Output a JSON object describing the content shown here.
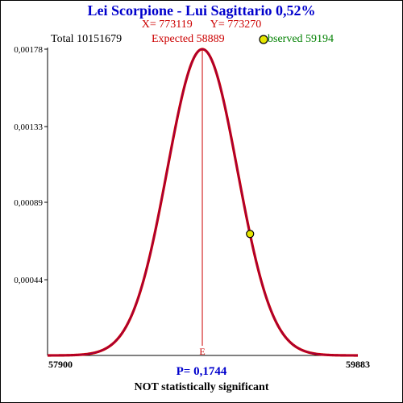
{
  "colors": {
    "title": "#0000cc",
    "x": "#cc0000",
    "y": "#cc0000",
    "total": "#000000",
    "expected": "#cc0000",
    "observed": "#008000",
    "p_value": "#0000cc",
    "verdict": "#000000",
    "curve_outer": "#cc0000",
    "curve_inner": "#660099",
    "expected_line": "#cc0000",
    "marker_fill": "#e6e600",
    "axis": "#000000"
  },
  "chart_data": {
    "type": "line",
    "title": "Lei Scorpione - Lui Sagittario  0,52%",
    "x_label": "X= 773119",
    "y_label": "Y= 773270",
    "total_label": "Total  10151679",
    "expected_label": "Expected  58889",
    "observed_label": "bserved  59194",
    "p_value_label": "P= 0,1744",
    "verdict": "NOT statistically significant",
    "expected_marker_label": "E",
    "xlim": [
      57900,
      59883
    ],
    "ylim": [
      0,
      0.00178
    ],
    "x_tick_labels": [
      "57900",
      "59883"
    ],
    "y_tick_labels": [
      "0,00178",
      "0,00133",
      "0,00089",
      "0,00044"
    ],
    "y_tick_values": [
      0.00178,
      0.00133,
      0.00089,
      0.00044
    ],
    "series": [
      {
        "mean": 58889,
        "std_dev": 224,
        "peak": 0.00178
      }
    ],
    "expected_value": 58889,
    "observed_point": {
      "x": 59194,
      "y": 0.000706
    }
  }
}
